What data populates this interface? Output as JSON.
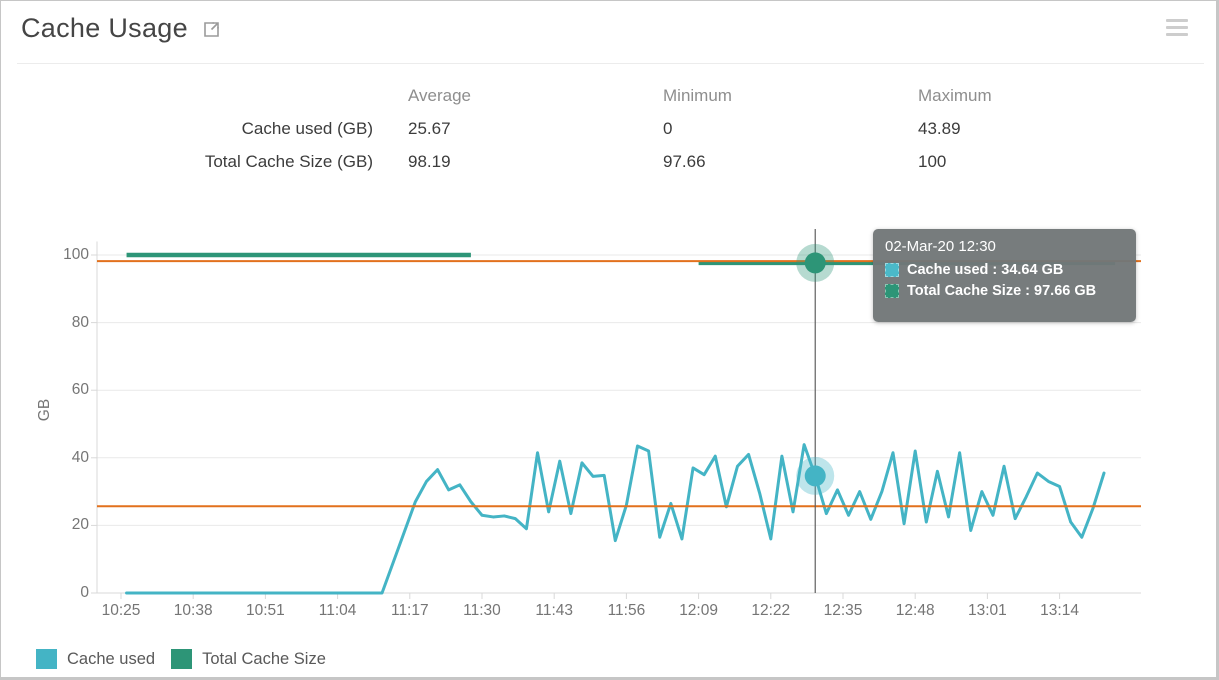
{
  "header": {
    "title": "Cache Usage",
    "export_icon": "external-link-icon",
    "menu_icon": "hamburger-menu-icon"
  },
  "stats_table": {
    "columns": [
      "Average",
      "Minimum",
      "Maximum"
    ],
    "rows": [
      {
        "label": "Cache used (GB)",
        "average": "25.67",
        "minimum": "0",
        "maximum": "43.89"
      },
      {
        "label": "Total Cache Size (GB)",
        "average": "98.19",
        "minimum": "97.66",
        "maximum": "100"
      }
    ]
  },
  "tooltip": {
    "title": "02-Mar-20 12:30",
    "rows": [
      {
        "text": "Cache used : 34.64 GB",
        "color": "#4bb9c8"
      },
      {
        "text": "Total Cache Size : 97.66 GB",
        "color": "#2d9577"
      }
    ]
  },
  "legend": [
    {
      "label": "Cache used",
      "color": "#44b4c5"
    },
    {
      "label": "Total Cache Size",
      "color": "#2d9577"
    }
  ],
  "colors": {
    "cache_used": "#44b4c5",
    "total_cache_size": "#2d9577",
    "average_line": "#e2711d",
    "crosshair": "#5f5f5f",
    "grid": "#e9e9e9",
    "axis": "#d8d8d8",
    "tick_text": "#757575"
  },
  "chart_data": {
    "type": "line",
    "title": "Cache Usage",
    "ylabel": "GB",
    "ylim": [
      0,
      105
    ],
    "yticks": [
      0,
      20,
      40,
      60,
      80,
      100
    ],
    "xticks": [
      "10:25",
      "10:38",
      "10:51",
      "11:04",
      "11:17",
      "11:30",
      "11:43",
      "11:56",
      "12:09",
      "12:22",
      "12:35",
      "12:48",
      "13:01",
      "13:14"
    ],
    "grid": "horizontal",
    "legend_position": "bottom-left",
    "series": [
      {
        "name": "Cache used",
        "color": "#44b4c5",
        "points": [
          [
            "10:26",
            0
          ],
          [
            "10:28",
            0
          ],
          [
            "10:30",
            0
          ],
          [
            "10:32",
            0
          ],
          [
            "10:34",
            0
          ],
          [
            "10:36",
            0
          ],
          [
            "10:38",
            0
          ],
          [
            "10:40",
            0
          ],
          [
            "10:42",
            0
          ],
          [
            "10:44",
            0
          ],
          [
            "10:46",
            0
          ],
          [
            "10:48",
            0
          ],
          [
            "10:50",
            0
          ],
          [
            "10:52",
            0
          ],
          [
            "10:54",
            0
          ],
          [
            "10:56",
            0
          ],
          [
            "10:58",
            0
          ],
          [
            "11:00",
            0
          ],
          [
            "11:02",
            0
          ],
          [
            "11:04",
            0
          ],
          [
            "11:06",
            0
          ],
          [
            "11:08",
            0
          ],
          [
            "11:10",
            0
          ],
          [
            "11:12",
            0
          ],
          [
            "11:14",
            9
          ],
          [
            "11:16",
            18
          ],
          [
            "11:18",
            27
          ],
          [
            "11:20",
            33
          ],
          [
            "11:22",
            36.5
          ],
          [
            "11:24",
            30.5
          ],
          [
            "11:26",
            32
          ],
          [
            "11:28",
            27
          ],
          [
            "11:30",
            23
          ],
          [
            "11:32",
            22.5
          ],
          [
            "11:34",
            22.8
          ],
          [
            "11:36",
            22
          ],
          [
            "11:38",
            19
          ],
          [
            "11:40",
            41.5
          ],
          [
            "11:42",
            24
          ],
          [
            "11:44",
            39
          ],
          [
            "11:46",
            23.5
          ],
          [
            "11:48",
            38.5
          ],
          [
            "11:50",
            34.5
          ],
          [
            "11:52",
            34.8
          ],
          [
            "11:54",
            15.5
          ],
          [
            "11:56",
            26
          ],
          [
            "11:58",
            43.5
          ],
          [
            "12:00",
            42
          ],
          [
            "12:02",
            16.5
          ],
          [
            "12:04",
            26.5
          ],
          [
            "12:06",
            16
          ],
          [
            "12:08",
            37
          ],
          [
            "12:10",
            35
          ],
          [
            "12:12",
            40.5
          ],
          [
            "12:14",
            25.5
          ],
          [
            "12:16",
            37.5
          ],
          [
            "12:18",
            41
          ],
          [
            "12:20",
            29.5
          ],
          [
            "12:22",
            16
          ],
          [
            "12:24",
            40.5
          ],
          [
            "12:26",
            24
          ],
          [
            "12:28",
            43.89
          ],
          [
            "12:30",
            34.64
          ],
          [
            "12:32",
            23.5
          ],
          [
            "12:34",
            30.5
          ],
          [
            "12:36",
            23
          ],
          [
            "12:38",
            30
          ],
          [
            "12:40",
            21.8
          ],
          [
            "12:42",
            30
          ],
          [
            "12:44",
            41.5
          ],
          [
            "12:46",
            20.5
          ],
          [
            "12:48",
            42
          ],
          [
            "12:50",
            21
          ],
          [
            "12:52",
            36
          ],
          [
            "12:54",
            22.5
          ],
          [
            "12:56",
            41.5
          ],
          [
            "12:58",
            18.5
          ],
          [
            "13:00",
            30
          ],
          [
            "13:02",
            23
          ],
          [
            "13:04",
            37.5
          ],
          [
            "13:06",
            22
          ],
          [
            "13:08",
            28.5
          ],
          [
            "13:10",
            35.5
          ],
          [
            "13:12",
            33
          ],
          [
            "13:14",
            31.5
          ],
          [
            "13:16",
            21
          ],
          [
            "13:18",
            16.5
          ],
          [
            "13:20",
            25
          ],
          [
            "13:22",
            35.5
          ]
        ]
      },
      {
        "name": "Total Cache Size",
        "color": "#2d9577",
        "segments": [
          {
            "from": "10:26",
            "to": "11:28",
            "value": 100
          },
          {
            "from": "12:09",
            "to": "13:24",
            "value": 97.66
          }
        ]
      }
    ],
    "average_lines": [
      {
        "series": "Cache used",
        "value": 25.67,
        "color": "#e2711d"
      },
      {
        "series": "Total Cache Size",
        "value": 98.19,
        "color": "#e2711d"
      }
    ],
    "crosshair_time": "12:30",
    "highlight_points": [
      {
        "series": "Cache used",
        "time": "12:30",
        "value": 34.64
      },
      {
        "series": "Total Cache Size",
        "time": "12:30",
        "value": 97.66
      }
    ]
  }
}
